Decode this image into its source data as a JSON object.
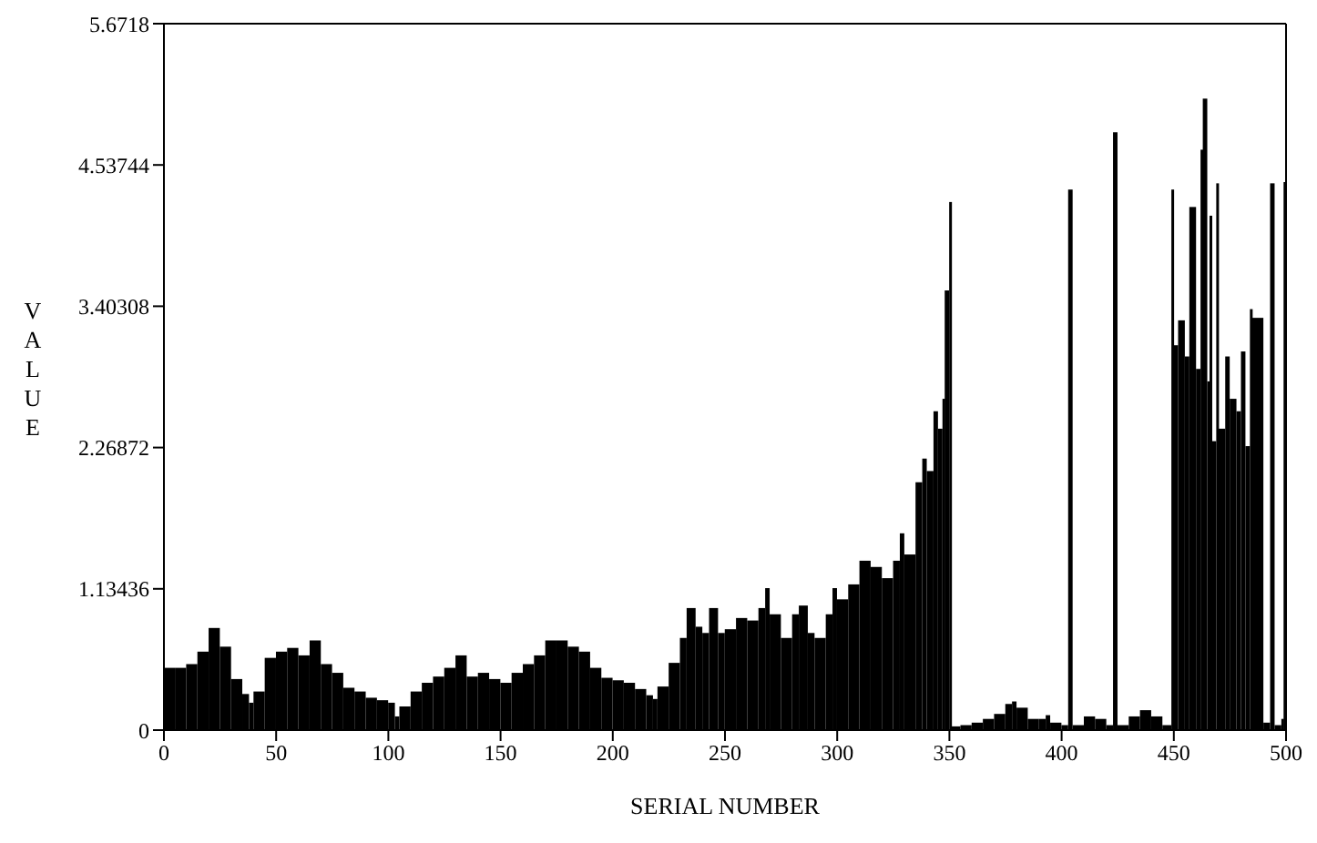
{
  "chart_data": {
    "type": "bar",
    "xlabel": "SERIAL NUMBER",
    "ylabel": "VALUE",
    "color": "#000000",
    "x": [
      0,
      5,
      10,
      15,
      20,
      25,
      30,
      35,
      38,
      40,
      45,
      50,
      55,
      60,
      65,
      70,
      75,
      80,
      85,
      90,
      95,
      100,
      103,
      105,
      110,
      115,
      120,
      125,
      130,
      135,
      140,
      145,
      150,
      155,
      160,
      165,
      170,
      175,
      180,
      185,
      190,
      195,
      200,
      205,
      210,
      215,
      218,
      220,
      225,
      230,
      233,
      237,
      240,
      243,
      247,
      250,
      255,
      260,
      265,
      268,
      270,
      275,
      280,
      283,
      287,
      290,
      295,
      298,
      300,
      305,
      310,
      315,
      320,
      325,
      328,
      330,
      335,
      338,
      340,
      343,
      345,
      347,
      348,
      350,
      351,
      355,
      360,
      365,
      370,
      375,
      378,
      380,
      385,
      390,
      393,
      395,
      400,
      403,
      405,
      410,
      415,
      420,
      423,
      425,
      430,
      435,
      440,
      445,
      449,
      450,
      452,
      455,
      457,
      460,
      462,
      463,
      465,
      466,
      467,
      469,
      470,
      473,
      475,
      478,
      480,
      482,
      484,
      485,
      490,
      493,
      495,
      498,
      499
    ],
    "values": [
      0.5,
      0.5,
      0.53,
      0.63,
      0.82,
      0.67,
      0.41,
      0.29,
      0.22,
      0.31,
      0.58,
      0.63,
      0.66,
      0.6,
      0.72,
      0.53,
      0.46,
      0.34,
      0.31,
      0.26,
      0.24,
      0.22,
      0.11,
      0.19,
      0.31,
      0.38,
      0.43,
      0.5,
      0.6,
      0.43,
      0.46,
      0.41,
      0.38,
      0.46,
      0.53,
      0.6,
      0.72,
      0.72,
      0.67,
      0.63,
      0.5,
      0.42,
      0.4,
      0.38,
      0.33,
      0.28,
      0.25,
      0.35,
      0.54,
      0.74,
      0.98,
      0.83,
      0.78,
      0.98,
      0.78,
      0.81,
      0.9,
      0.88,
      0.98,
      1.14,
      0.93,
      0.74,
      0.93,
      1.0,
      0.78,
      0.74,
      0.93,
      1.14,
      1.05,
      1.17,
      1.36,
      1.31,
      1.22,
      1.36,
      1.58,
      1.41,
      1.99,
      2.18,
      2.08,
      2.56,
      2.42,
      2.66,
      3.53,
      4.24,
      0.03,
      0.04,
      0.06,
      0.09,
      0.13,
      0.21,
      0.23,
      0.18,
      0.09,
      0.09,
      0.12,
      0.06,
      0.04,
      4.34,
      0.04,
      0.11,
      0.09,
      0.04,
      4.8,
      0.04,
      0.11,
      0.16,
      0.11,
      0.04,
      4.34,
      3.09,
      3.29,
      3.0,
      4.2,
      2.9,
      4.66,
      5.07,
      2.8,
      4.13,
      2.32,
      4.39,
      2.42,
      3.0,
      2.66,
      2.56,
      3.04,
      2.28,
      3.38,
      3.31,
      0.06,
      4.39,
      0.04,
      0.09,
      4.4
    ],
    "xlim": [
      0,
      500
    ],
    "xticks": [
      0,
      50,
      100,
      150,
      200,
      250,
      300,
      350,
      400,
      450,
      500
    ],
    "ylim": [
      0,
      5.6718
    ],
    "yticks": [
      0,
      1.13436,
      2.26872,
      3.40308,
      4.53744,
      5.6718
    ]
  }
}
